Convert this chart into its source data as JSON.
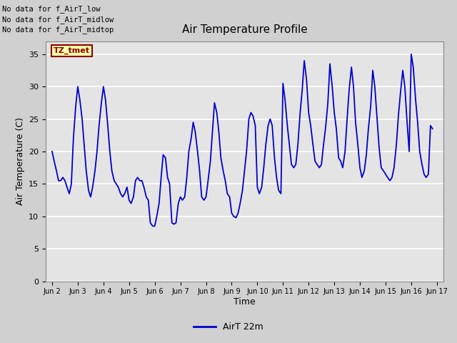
{
  "title": "Air Temperature Profile",
  "xlabel": "Time",
  "ylabel": "Air Temperature (C)",
  "legend_label": "AirT 22m",
  "legend_color": "#0000cc",
  "line_color": "#0000cc",
  "fig_bg_color": "#c8c8c8",
  "plot_bg_color": "#e0e0e0",
  "ylim": [
    0,
    37
  ],
  "yticks": [
    0,
    5,
    10,
    15,
    20,
    25,
    30,
    35
  ],
  "annotations": [
    "No data for f_AirT_low",
    "No data for f_AirT_midlow",
    "No data for f_AirT_midtop"
  ],
  "tz_label": "TZ_tmet",
  "x_labels": [
    "Jun 2",
    "Jun 3",
    "Jun 4",
    "Jun 5",
    "Jun 6",
    "Jun 7",
    "Jun 8",
    "Jun 9",
    "Jun 10",
    "Jun 11",
    "Jun 12",
    "Jun 13",
    "Jun 14",
    "Jun 15",
    "Jun 16",
    "Jun 17"
  ],
  "x_values": [
    2,
    3,
    4,
    5,
    6,
    7,
    8,
    9,
    10,
    11,
    12,
    13,
    14,
    15,
    16,
    17
  ],
  "time_series_x": [
    2.0,
    2.08,
    2.17,
    2.25,
    2.33,
    2.42,
    2.5,
    2.58,
    2.67,
    2.75,
    2.83,
    2.92,
    3.0,
    3.08,
    3.17,
    3.25,
    3.33,
    3.42,
    3.5,
    3.58,
    3.67,
    3.75,
    3.83,
    3.92,
    4.0,
    4.08,
    4.17,
    4.25,
    4.33,
    4.42,
    4.5,
    4.58,
    4.67,
    4.75,
    4.83,
    4.92,
    5.0,
    5.08,
    5.17,
    5.25,
    5.33,
    5.42,
    5.5,
    5.58,
    5.67,
    5.75,
    5.83,
    5.92,
    6.0,
    6.08,
    6.17,
    6.25,
    6.33,
    6.42,
    6.5,
    6.58,
    6.67,
    6.75,
    6.83,
    6.92,
    7.0,
    7.08,
    7.17,
    7.25,
    7.33,
    7.42,
    7.5,
    7.58,
    7.67,
    7.75,
    7.83,
    7.92,
    8.0,
    8.08,
    8.17,
    8.25,
    8.33,
    8.42,
    8.5,
    8.58,
    8.67,
    8.75,
    8.83,
    8.92,
    9.0,
    9.08,
    9.17,
    9.25,
    9.33,
    9.42,
    9.5,
    9.58,
    9.67,
    9.75,
    9.83,
    9.92,
    10.0,
    10.08,
    10.17,
    10.25,
    10.33,
    10.42,
    10.5,
    10.58,
    10.67,
    10.75,
    10.83,
    10.92,
    11.0,
    11.08,
    11.17,
    11.25,
    11.33,
    11.42,
    11.5,
    11.58,
    11.67,
    11.75,
    11.83,
    11.92,
    12.0,
    12.08,
    12.17,
    12.25,
    12.33,
    12.42,
    12.5,
    12.58,
    12.67,
    12.75,
    12.83,
    12.92,
    13.0,
    13.08,
    13.17,
    13.25,
    13.33,
    13.42,
    13.5,
    13.58,
    13.67,
    13.75,
    13.83,
    13.92,
    14.0,
    14.08,
    14.17,
    14.25,
    14.33,
    14.42,
    14.5,
    14.58,
    14.67,
    14.75,
    14.83,
    14.92,
    15.0,
    15.08,
    15.17,
    15.25,
    15.33,
    15.42,
    15.5,
    15.58,
    15.67,
    15.75,
    15.83,
    15.92,
    16.0,
    16.08,
    16.17,
    16.25,
    16.33,
    16.42,
    16.5,
    16.58,
    16.67,
    16.75,
    16.83
  ],
  "time_series_y": [
    20.0,
    18.5,
    17.0,
    15.5,
    15.5,
    16.0,
    15.5,
    14.5,
    13.5,
    15.0,
    22.0,
    27.0,
    30.0,
    28.0,
    25.0,
    21.0,
    17.0,
    14.0,
    13.0,
    14.5,
    17.0,
    20.0,
    24.0,
    27.5,
    30.0,
    28.0,
    24.0,
    20.0,
    17.0,
    15.5,
    15.0,
    14.5,
    13.5,
    13.0,
    13.5,
    14.5,
    12.5,
    12.0,
    13.0,
    15.5,
    16.0,
    15.5,
    15.5,
    14.5,
    13.0,
    12.5,
    9.0,
    8.5,
    8.5,
    10.0,
    12.0,
    16.0,
    19.5,
    19.0,
    16.0,
    15.0,
    9.0,
    8.8,
    9.0,
    12.0,
    13.0,
    12.5,
    13.0,
    16.0,
    20.0,
    22.0,
    24.5,
    23.0,
    20.0,
    17.0,
    13.0,
    12.5,
    13.0,
    15.5,
    18.5,
    23.0,
    27.5,
    26.0,
    23.0,
    19.0,
    17.0,
    15.5,
    13.5,
    13.0,
    10.5,
    10.0,
    9.8,
    10.5,
    12.0,
    14.0,
    17.0,
    20.0,
    25.0,
    26.0,
    25.5,
    24.0,
    14.5,
    13.5,
    14.5,
    17.5,
    21.0,
    24.0,
    25.0,
    24.0,
    19.0,
    16.0,
    14.0,
    13.5,
    30.5,
    28.0,
    24.0,
    21.0,
    18.0,
    17.5,
    18.0,
    21.0,
    26.0,
    29.5,
    34.0,
    31.0,
    26.0,
    24.0,
    21.0,
    18.5,
    18.0,
    17.5,
    18.0,
    21.0,
    24.0,
    27.5,
    33.5,
    30.0,
    26.0,
    23.5,
    19.0,
    18.5,
    17.5,
    20.0,
    25.0,
    29.5,
    33.0,
    30.0,
    24.5,
    21.0,
    17.5,
    16.0,
    17.0,
    19.5,
    23.5,
    27.0,
    32.5,
    30.0,
    25.0,
    20.5,
    17.5,
    17.0,
    16.5,
    16.0,
    15.5,
    16.0,
    17.5,
    21.0,
    25.5,
    29.0,
    32.5,
    30.0,
    25.0,
    20.0,
    35.0,
    33.0,
    28.0,
    24.5,
    20.0,
    18.0,
    16.5,
    16.0,
    16.5,
    24.0,
    23.5
  ]
}
